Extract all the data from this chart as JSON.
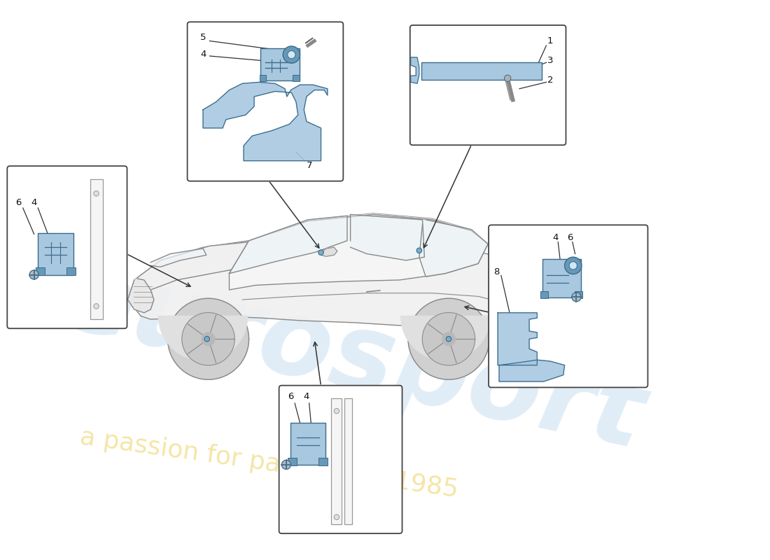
{
  "bg_color": "#ffffff",
  "watermark_color_blue": "#c8dff0",
  "watermark_color_yellow": "#f0d878",
  "box_border_color": "#444444",
  "box_bg_color": "#ffffff",
  "part_color_fill": "#a8c8e0",
  "part_color_stroke": "#3a6a8a",
  "part_color_dark": "#6898b8",
  "label_color": "#111111",
  "line_color": "#333333",
  "car_line_color": "#888888",
  "car_fill_color": "#f0f0f0"
}
